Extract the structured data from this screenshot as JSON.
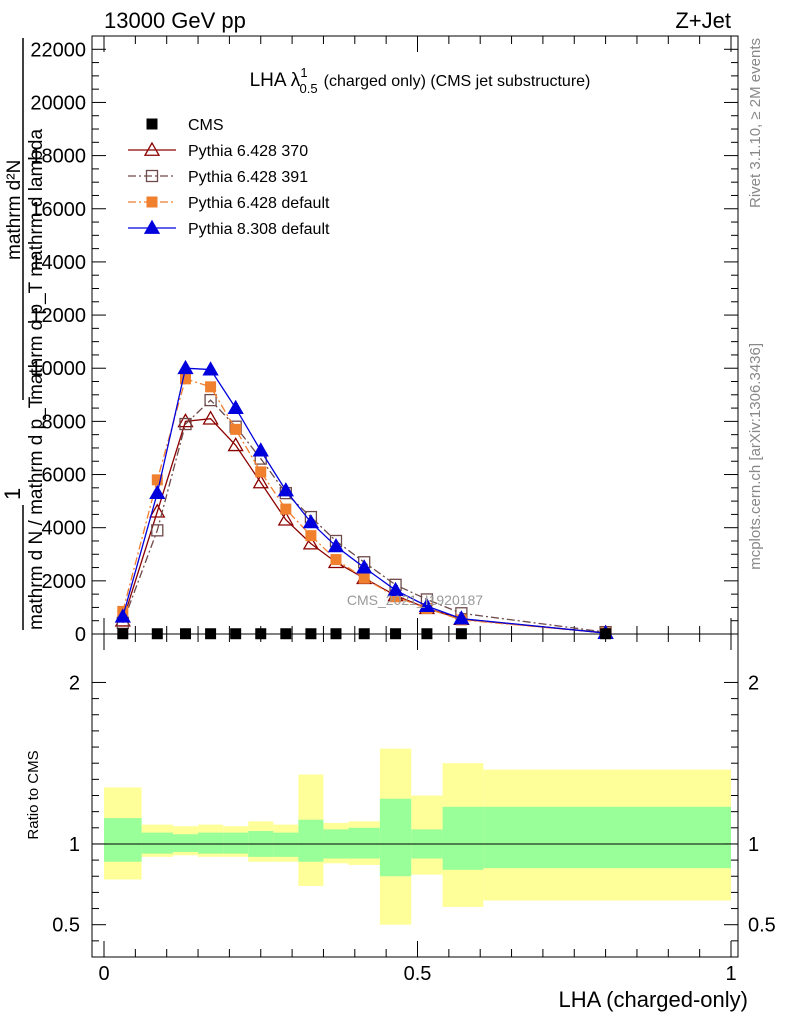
{
  "header": {
    "left": "13000 GeV pp",
    "right": "Z+Jet"
  },
  "side_labels": {
    "rivet": "Rivet 3.1.10, ≥ 2M events",
    "mcplots": "mcplots.cern.ch [arXiv:1306.3436]"
  },
  "watermark": "CMS_2021_I1920187",
  "chart_data": [
    {
      "type": "line",
      "title": "LHA λ¹₀.₅ (charged only) (CMS jet substructure)",
      "title_parts": {
        "main": "LHA λ",
        "sup": "1",
        "sub": "0.5",
        "rest": "(charged only) (CMS jet substructure)"
      },
      "ylabel_lines": [
        "mathrm d²N",
        "mathrm d p_T mathrm d lambda",
        "1",
        "mathrm d N / mathrm d p_T"
      ],
      "xlim": [
        0,
        1
      ],
      "ylim": [
        0,
        22500
      ],
      "yticks": [
        0,
        2000,
        4000,
        6000,
        8000,
        10000,
        12000,
        14000,
        16000,
        18000,
        20000,
        22000
      ],
      "ytick_labels": [
        "0",
        "2000",
        "4000",
        "6000",
        "8000",
        "10000",
        "12000",
        "14000",
        "16000",
        "18000",
        "20000",
        "22000"
      ],
      "legend_position": "top-left",
      "x": [
        0.03,
        0.085,
        0.13,
        0.17,
        0.21,
        0.25,
        0.29,
        0.33,
        0.37,
        0.415,
        0.465,
        0.515,
        0.57,
        0.8
      ],
      "series": [
        {
          "name": "CMS",
          "color": "#000000",
          "marker": "square-filled",
          "dash": "none",
          "values": [
            10,
            10,
            10,
            10,
            10,
            10,
            10,
            10,
            10,
            10,
            10,
            10,
            10,
            10
          ]
        },
        {
          "name": "Pythia 6.428 370",
          "color": "#8b0000",
          "marker": "triangle-open",
          "dash": "solid",
          "values": [
            500,
            4600,
            8000,
            8100,
            7100,
            5700,
            4300,
            3400,
            2700,
            2100,
            1450,
            970,
            560,
            40
          ]
        },
        {
          "name": "Pythia 6.428 391",
          "color": "#6e4a4a",
          "marker": "square-open",
          "dash": "dashdot",
          "values": [
            420,
            3900,
            7900,
            8800,
            7800,
            6600,
            5300,
            4400,
            3500,
            2700,
            1850,
            1300,
            780,
            70
          ]
        },
        {
          "name": "Pythia 6.428 default",
          "color": "#f07f2e",
          "marker": "square-filled",
          "dash": "dashdot",
          "values": [
            850,
            5800,
            9600,
            9300,
            7700,
            6100,
            4700,
            3700,
            2800,
            2100,
            1400,
            960,
            530,
            40
          ]
        },
        {
          "name": "Pythia 8.308 default",
          "color": "#0000dd",
          "marker": "triangle-filled",
          "dash": "solid",
          "values": [
            650,
            5300,
            10000,
            9950,
            8500,
            6900,
            5400,
            4200,
            3300,
            2500,
            1650,
            1050,
            580,
            35
          ]
        }
      ]
    },
    {
      "type": "area",
      "ylabel": "Ratio to CMS",
      "xlabel": "LHA (charged-only)",
      "xlim": [
        0,
        1
      ],
      "ylim": [
        0.3,
        2.3
      ],
      "yticks": [
        0.5,
        1,
        2
      ],
      "ytick_labels": [
        "0.5",
        "1",
        "2"
      ],
      "xticks": [
        0,
        0.5,
        1
      ],
      "xtick_labels": [
        "0",
        "0.5",
        "1"
      ],
      "reference": 1,
      "bins": [
        {
          "x0": 0.0,
          "x1": 0.06,
          "stat": [
            0.89,
            1.16
          ],
          "total": [
            0.78,
            1.35
          ]
        },
        {
          "x0": 0.06,
          "x1": 0.11,
          "stat": [
            0.94,
            1.07
          ],
          "total": [
            0.92,
            1.12
          ]
        },
        {
          "x0": 0.11,
          "x1": 0.15,
          "stat": [
            0.95,
            1.06
          ],
          "total": [
            0.93,
            1.11
          ]
        },
        {
          "x0": 0.15,
          "x1": 0.19,
          "stat": [
            0.94,
            1.07
          ],
          "total": [
            0.92,
            1.12
          ]
        },
        {
          "x0": 0.19,
          "x1": 0.23,
          "stat": [
            0.94,
            1.07
          ],
          "total": [
            0.92,
            1.11
          ]
        },
        {
          "x0": 0.23,
          "x1": 0.27,
          "stat": [
            0.92,
            1.08
          ],
          "total": [
            0.89,
            1.14
          ]
        },
        {
          "x0": 0.27,
          "x1": 0.31,
          "stat": [
            0.92,
            1.07
          ],
          "total": [
            0.89,
            1.12
          ]
        },
        {
          "x0": 0.31,
          "x1": 0.35,
          "stat": [
            0.89,
            1.15
          ],
          "total": [
            0.74,
            1.43
          ]
        },
        {
          "x0": 0.35,
          "x1": 0.39,
          "stat": [
            0.91,
            1.09
          ],
          "total": [
            0.88,
            1.13
          ]
        },
        {
          "x0": 0.39,
          "x1": 0.44,
          "stat": [
            0.91,
            1.1
          ],
          "total": [
            0.87,
            1.14
          ]
        },
        {
          "x0": 0.44,
          "x1": 0.49,
          "stat": [
            0.8,
            1.28
          ],
          "total": [
            0.5,
            1.59
          ]
        },
        {
          "x0": 0.49,
          "x1": 0.54,
          "stat": [
            0.91,
            1.09
          ],
          "total": [
            0.81,
            1.3
          ]
        },
        {
          "x0": 0.54,
          "x1": 0.605,
          "stat": [
            0.84,
            1.23
          ],
          "total": [
            0.61,
            1.5
          ]
        },
        {
          "x0": 0.605,
          "x1": 1.0,
          "stat": [
            0.85,
            1.23
          ],
          "total": [
            0.65,
            1.46
          ]
        }
      ],
      "colors": {
        "stat": "#99ff99",
        "total": "#ffff99",
        "line": "#000000"
      }
    }
  ]
}
